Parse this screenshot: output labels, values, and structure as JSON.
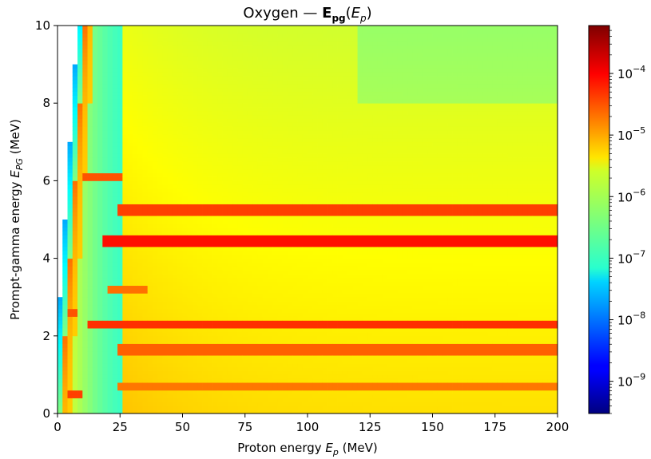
{
  "chart_data": {
    "type": "heatmap",
    "title_parts": {
      "prefix": "Oxygen — ",
      "bold": "E",
      "bold_sub": "pg",
      "paren_open": "(",
      "var": "E",
      "var_sub": "p",
      "paren_close": ")"
    },
    "xlabel_parts": {
      "text": "Proton energy ",
      "var": "E",
      "sub": "p",
      "unit": " (MeV)"
    },
    "ylabel_parts": {
      "text": "Prompt-gamma energy ",
      "var": "E",
      "sub": "PG",
      "unit": " (MeV)"
    },
    "xlim": [
      0,
      200
    ],
    "ylim": [
      0,
      10
    ],
    "x_ticks": [
      "0",
      "25",
      "50",
      "75",
      "100",
      "125",
      "150",
      "175",
      "200"
    ],
    "y_ticks": [
      "0",
      "2",
      "4",
      "6",
      "8",
      "10"
    ],
    "colormap": "jet",
    "color_scale": "log",
    "colorbar_range": [
      3e-10,
      0.0006
    ],
    "colorbar_ticks": [
      {
        "value": 1e-09,
        "base": "10",
        "exp": "−9"
      },
      {
        "value": 1e-08,
        "base": "10",
        "exp": "−8"
      },
      {
        "value": 1e-07,
        "base": "10",
        "exp": "−7"
      },
      {
        "value": 1e-06,
        "base": "10",
        "exp": "−6"
      },
      {
        "value": 1e-05,
        "base": "10",
        "exp": "−5"
      },
      {
        "value": 0.0001,
        "base": "10",
        "exp": "−4"
      }
    ],
    "emission_threshold_mev": 10,
    "emission_lines_mev": [
      {
        "energy": 6.13,
        "peak_ep": [
          10,
          25
        ],
        "intensity": 3e-05
      },
      {
        "energy": 5.24,
        "peak_ep": [
          25,
          200
        ],
        "intensity": 4e-05
      },
      {
        "energy": 4.44,
        "peak_ep": [
          18,
          200
        ],
        "intensity": 8e-05
      },
      {
        "energy": 3.2,
        "peak_ep": [
          20,
          35
        ],
        "intensity": 2e-05
      },
      {
        "energy": 2.31,
        "peak_ep": [
          12,
          200
        ],
        "intensity": 5e-05
      },
      {
        "energy": 1.64,
        "peak_ep": [
          25,
          200
        ],
        "intensity": 2.5e-05
      },
      {
        "energy": 0.72,
        "peak_ep": [
          25,
          200
        ],
        "intensity": 1.8e-05
      },
      {
        "energy": 0.5,
        "peak_ep": [
          5,
          9
        ],
        "intensity": 4e-05
      },
      {
        "energy": 2.6,
        "peak_ep": [
          5,
          8
        ],
        "intensity": 3e-05
      }
    ]
  }
}
